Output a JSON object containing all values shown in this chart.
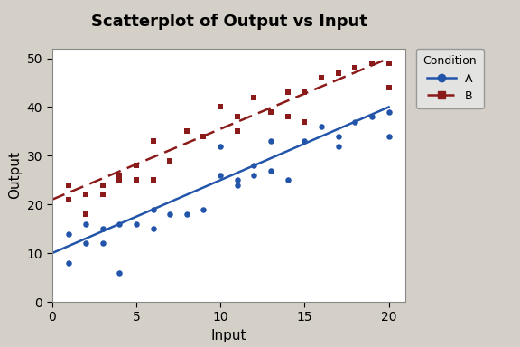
{
  "title": "Scatterplot of Output vs Input",
  "xlabel": "Input",
  "ylabel": "Output",
  "xlim": [
    0,
    21
  ],
  "ylim": [
    0,
    52
  ],
  "xticks": [
    0,
    5,
    10,
    15,
    20
  ],
  "yticks": [
    0,
    10,
    20,
    30,
    40,
    50
  ],
  "background_color": "#d4d0c8",
  "plot_bg_color": "#ffffff",
  "A_x": [
    1,
    1,
    2,
    2,
    3,
    3,
    4,
    4,
    5,
    6,
    6,
    7,
    8,
    9,
    10,
    10,
    11,
    11,
    12,
    12,
    13,
    13,
    14,
    15,
    16,
    17,
    17,
    18,
    19,
    20,
    20
  ],
  "A_y": [
    14,
    8,
    16,
    12,
    15,
    12,
    16,
    6,
    16,
    19,
    15,
    18,
    18,
    19,
    32,
    26,
    25,
    24,
    26,
    28,
    33,
    27,
    25,
    33,
    36,
    32,
    34,
    37,
    38,
    39,
    34
  ],
  "B_x": [
    1,
    1,
    2,
    2,
    3,
    3,
    4,
    4,
    5,
    5,
    6,
    6,
    7,
    8,
    9,
    10,
    11,
    11,
    12,
    13,
    14,
    14,
    15,
    15,
    16,
    17,
    18,
    19,
    20,
    20
  ],
  "B_y": [
    24,
    21,
    22,
    18,
    24,
    22,
    26,
    25,
    28,
    25,
    33,
    25,
    29,
    35,
    34,
    40,
    38,
    35,
    42,
    39,
    43,
    38,
    43,
    37,
    46,
    47,
    48,
    49,
    49,
    44
  ],
  "A_line_x": [
    0,
    20
  ],
  "A_line_y": [
    10,
    40
  ],
  "B_line_x": [
    0,
    20
  ],
  "B_line_y": [
    21,
    50
  ],
  "A_color": "#2255aa",
  "B_color": "#8b1a1a",
  "A_marker": "o",
  "B_marker": "s",
  "legend_title": "Condition",
  "legend_A": "A",
  "legend_B": "B",
  "title_fontsize": 13,
  "label_fontsize": 11,
  "tick_fontsize": 10
}
